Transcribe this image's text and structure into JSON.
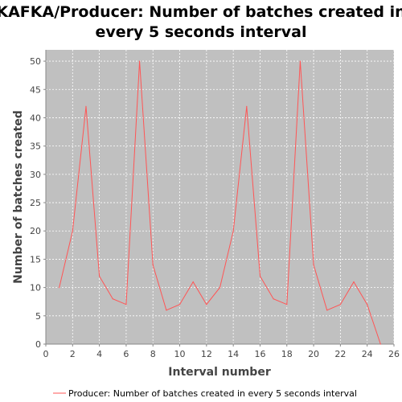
{
  "chart_data": {
    "type": "line",
    "title_lines": [
      "KAFKA/Producer: Number of batches created in",
      "every 5 seconds interval"
    ],
    "xlabel": "Interval number",
    "ylabel": "Number of batches created",
    "xlim": [
      0,
      26
    ],
    "ylim": [
      0,
      52
    ],
    "x_ticks": [
      0,
      2,
      4,
      6,
      8,
      10,
      12,
      14,
      16,
      18,
      20,
      22,
      24,
      26
    ],
    "y_ticks": [
      0,
      5,
      10,
      15,
      20,
      25,
      30,
      35,
      40,
      45,
      50
    ],
    "grid": true,
    "legend_position": "bottom",
    "series": [
      {
        "name": "Producer: Number of batches created in every 5 seconds interval",
        "color": "#ff5555",
        "x": [
          1,
          2,
          3,
          4,
          5,
          6,
          7,
          8,
          9,
          10,
          11,
          12,
          13,
          14,
          15,
          16,
          17,
          18,
          19,
          20,
          21,
          22,
          23,
          24,
          25
        ],
        "y": [
          10,
          20,
          42,
          12,
          8,
          7,
          50,
          14,
          6,
          7,
          11,
          7,
          10,
          20,
          42,
          12,
          8,
          7,
          50,
          14,
          6,
          7,
          11,
          7,
          0
        ]
      }
    ],
    "plot_background": "#c0c0c0",
    "grid_color": "#ffffff"
  }
}
